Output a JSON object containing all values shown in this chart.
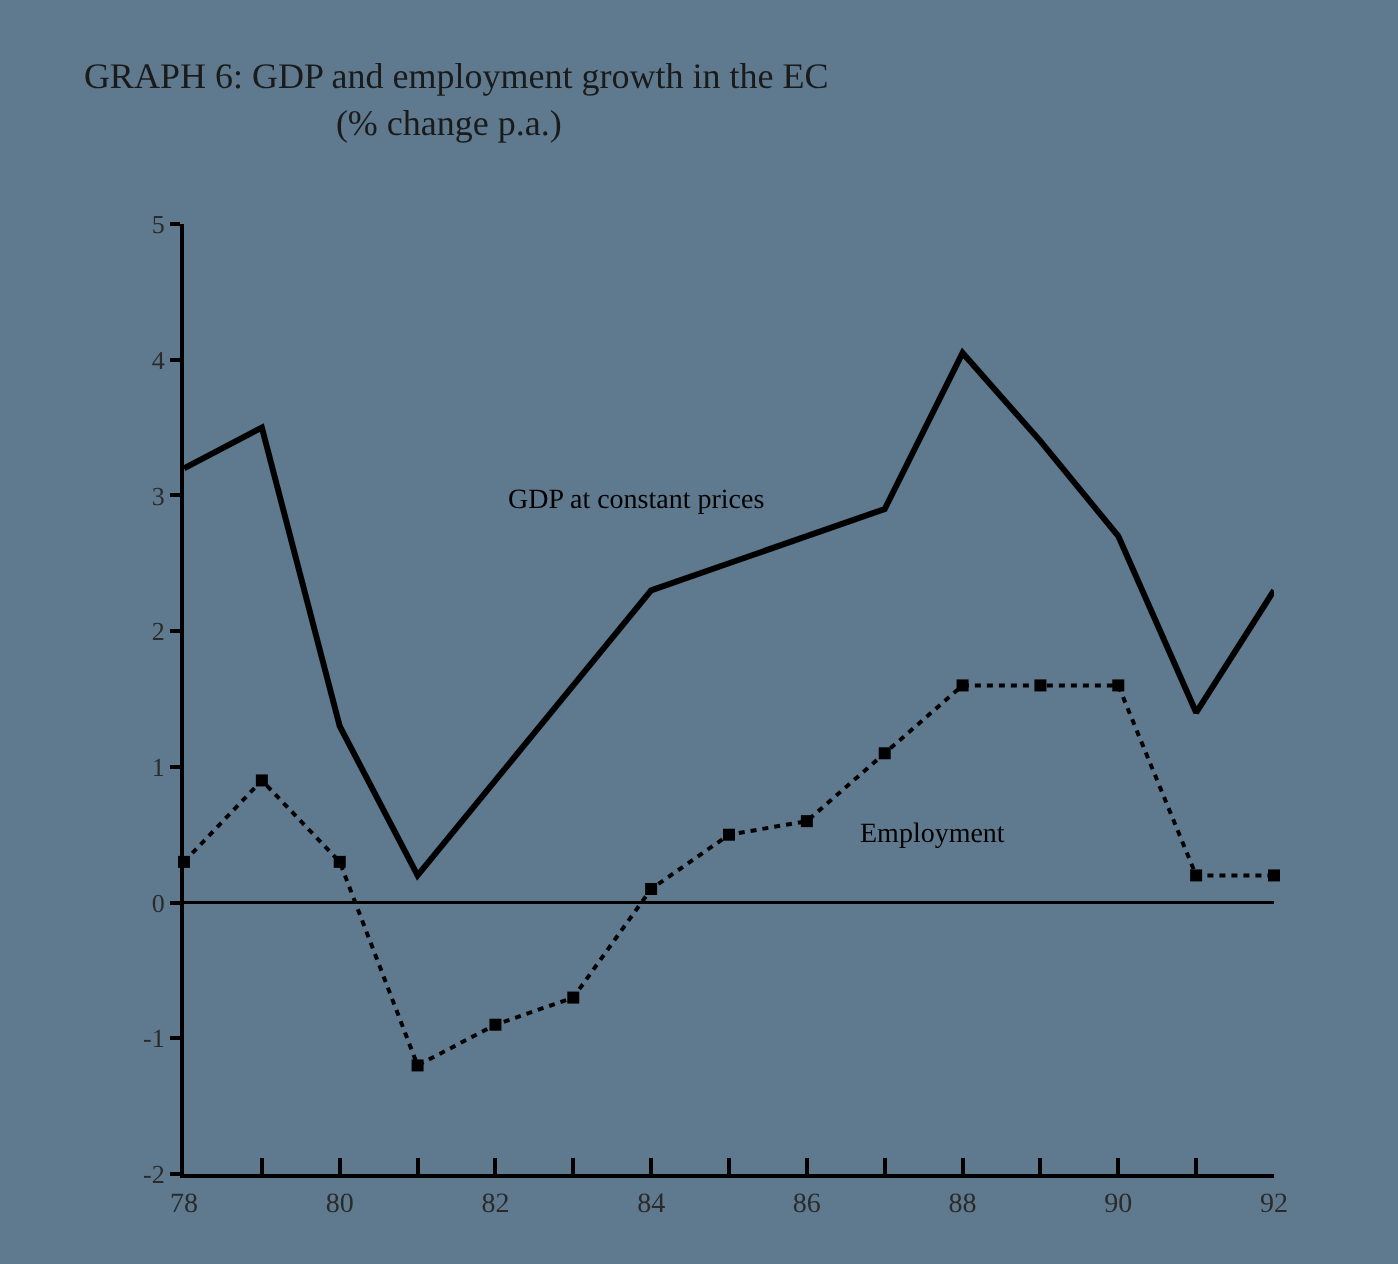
{
  "chart_data": {
    "type": "line",
    "title": "GRAPH 6: GDP and employment growth in the EC",
    "subtitle": "(% change p.a.)",
    "x": [
      78,
      79,
      80,
      81,
      82,
      83,
      84,
      85,
      86,
      87,
      88,
      89,
      90,
      91,
      92
    ],
    "series": [
      {
        "name": "GDP at constant prices",
        "color": "#000000",
        "marker": "none",
        "line_style": "solid",
        "values": [
          3.2,
          3.5,
          1.3,
          0.2,
          0.9,
          1.6,
          2.3,
          2.5,
          2.7,
          2.9,
          4.05,
          3.4,
          2.7,
          1.4,
          2.3
        ]
      },
      {
        "name": "Employment",
        "color": "#000000",
        "marker": "square",
        "line_style": "dotted",
        "values": [
          0.3,
          0.9,
          0.3,
          -1.2,
          -0.9,
          -0.7,
          0.1,
          0.5,
          0.6,
          1.1,
          1.6,
          1.6,
          1.6,
          0.2,
          0.2
        ]
      }
    ],
    "xlim": [
      78,
      92
    ],
    "ylim": [
      -2,
      5
    ],
    "xticks": [
      78,
      {
        "value": 79,
        "label": null
      },
      80,
      {
        "value": 81,
        "label": null
      },
      82,
      {
        "value": 83,
        "label": null
      },
      84,
      {
        "value": 85,
        "label": null
      },
      86,
      {
        "value": 87,
        "label": null
      },
      88,
      {
        "value": 89,
        "label": null
      },
      90,
      {
        "value": 91,
        "label": null
      },
      92
    ],
    "yticks": [
      -2,
      -1,
      0,
      1,
      2,
      3,
      4,
      5
    ],
    "ref_lines": [
      {
        "axis": "y",
        "value": 0,
        "label": null,
        "color": "#000000",
        "line_style": "solid"
      }
    ],
    "grid": false,
    "legend": false
  }
}
